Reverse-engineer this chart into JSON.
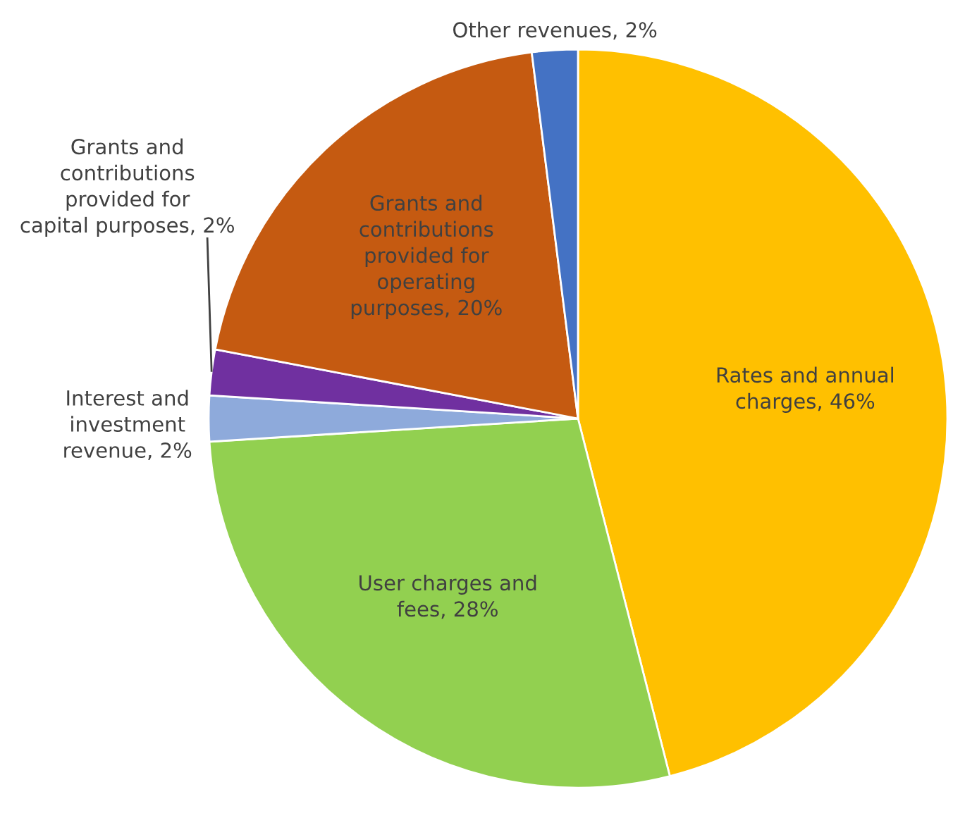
{
  "chart_data": {
    "type": "pie",
    "categories": [
      "Rates and annual\ncharges",
      "User charges and\nfees",
      "Interest and\ninvestment\nrevenue",
      "Grants and\ncontributions\nprovided for\ncapital purposes",
      "Grants and\ncontributions\nprovided for\noperating\npurposes",
      "Other revenues"
    ],
    "values": [
      46,
      28,
      2,
      2,
      20,
      2
    ],
    "value_labels": [
      "46%",
      "28%",
      "2%",
      "2%",
      "20%",
      "2%"
    ],
    "colors": [
      "#ffc000",
      "#92d050",
      "#8eaadb",
      "#7030a0",
      "#c55a11",
      "#4472c4"
    ],
    "legend": false
  }
}
